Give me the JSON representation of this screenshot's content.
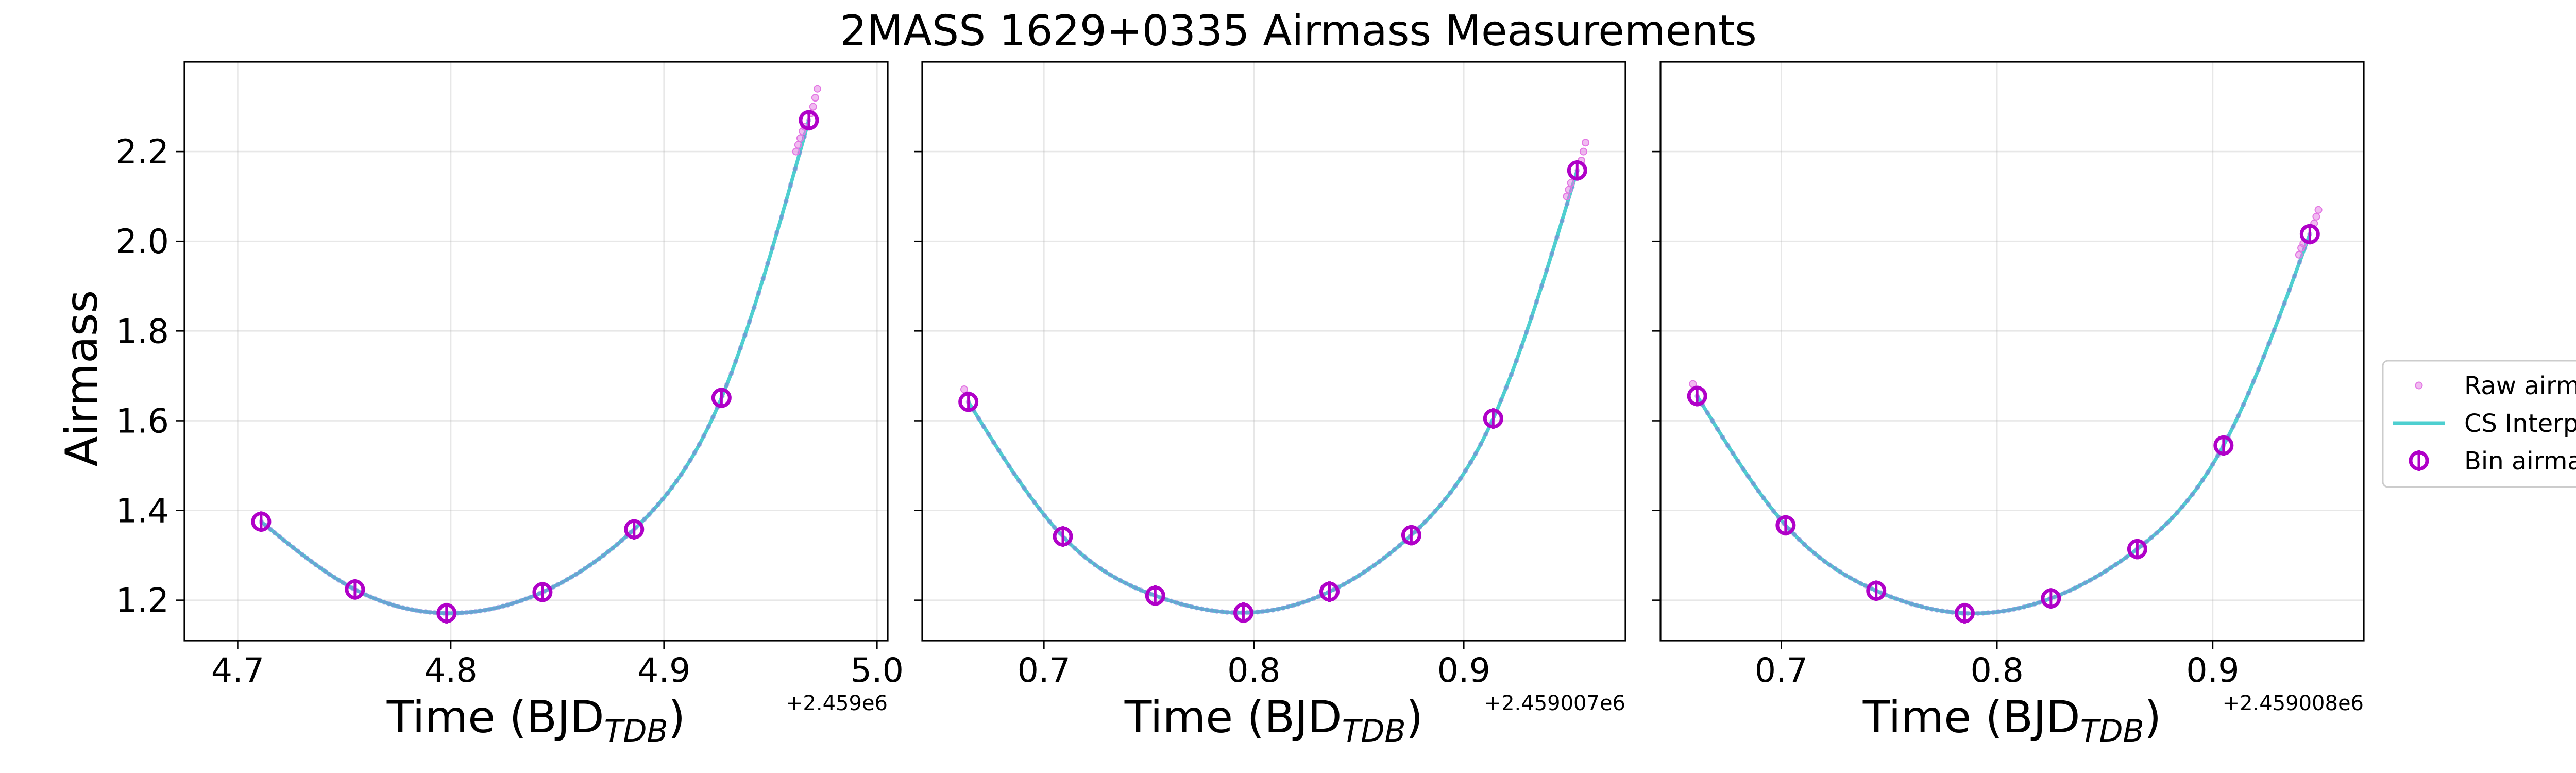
{
  "chart_data": {
    "type": "scatter",
    "title": "2MASS 1629+0335 Airmass Measurements",
    "ylabel": "Airmass",
    "xlabel_main": "Time (BJD",
    "xlabel_sub": "TDB",
    "xlabel_end": ")",
    "ylim": [
      1.11,
      2.4
    ],
    "yticks": [
      1.2,
      1.4,
      1.6,
      1.8,
      2.0,
      2.2
    ],
    "ytick_labels": [
      "1.2",
      "1.4",
      "1.6",
      "1.8",
      "2.0",
      "2.2"
    ],
    "grid": true,
    "legend_position": "right",
    "legend": [
      {
        "label": "Raw airmass",
        "kind": "raw"
      },
      {
        "label": "CS Interp.",
        "kind": "interp"
      },
      {
        "label": "Bin airmass",
        "kind": "bin"
      }
    ],
    "colors": {
      "raw": "#e377e3",
      "raw_dark": "#8a6fd8",
      "interp": "#4ecfd0",
      "bin": "#b000c8"
    },
    "panels": [
      {
        "offset_label": "+2.459e6",
        "xlim": [
          4.675,
          5.005
        ],
        "xticks": [
          4.7,
          4.8,
          4.9,
          5.0
        ],
        "xtick_labels": [
          "4.7",
          "4.8",
          "4.9",
          "5.0"
        ],
        "bins": [
          {
            "x": 4.711,
            "y": 1.375
          },
          {
            "x": 4.755,
            "y": 1.224
          },
          {
            "x": 4.798,
            "y": 1.171
          },
          {
            "x": 4.843,
            "y": 1.218
          },
          {
            "x": 4.886,
            "y": 1.358
          },
          {
            "x": 4.927,
            "y": 1.651
          },
          {
            "x": 4.968,
            "y": 2.27
          }
        ],
        "raw_end": [
          {
            "x": 4.962,
            "y": 2.2
          },
          {
            "x": 4.963,
            "y": 2.215
          },
          {
            "x": 4.964,
            "y": 2.23
          },
          {
            "x": 4.965,
            "y": 2.245
          },
          {
            "x": 4.966,
            "y": 2.255
          },
          {
            "x": 4.969,
            "y": 2.285
          },
          {
            "x": 4.97,
            "y": 2.3
          },
          {
            "x": 4.971,
            "y": 2.32
          },
          {
            "x": 4.972,
            "y": 2.34
          }
        ]
      },
      {
        "offset_label": "+2.459007e6",
        "xlim": [
          0.642,
          0.977
        ],
        "xticks": [
          0.7,
          0.8,
          0.9
        ],
        "xtick_labels": [
          "0.7",
          "0.8",
          "0.9"
        ],
        "bins": [
          {
            "x": 0.664,
            "y": 1.642
          },
          {
            "x": 0.709,
            "y": 1.342
          },
          {
            "x": 0.753,
            "y": 1.21
          },
          {
            "x": 0.795,
            "y": 1.172
          },
          {
            "x": 0.836,
            "y": 1.219
          },
          {
            "x": 0.875,
            "y": 1.345
          },
          {
            "x": 0.914,
            "y": 1.605
          },
          {
            "x": 0.954,
            "y": 2.158
          }
        ],
        "raw_end": [
          {
            "x": 0.662,
            "y": 1.67
          },
          {
            "x": 0.949,
            "y": 2.1
          },
          {
            "x": 0.95,
            "y": 2.115
          },
          {
            "x": 0.951,
            "y": 2.13
          },
          {
            "x": 0.956,
            "y": 2.18
          },
          {
            "x": 0.957,
            "y": 2.2
          },
          {
            "x": 0.958,
            "y": 2.22
          }
        ]
      },
      {
        "offset_label": "+2.459008e6",
        "xlim": [
          0.644,
          0.97
        ],
        "xticks": [
          0.7,
          0.8,
          0.9
        ],
        "xtick_labels": [
          "0.7",
          "0.8",
          "0.9"
        ],
        "bins": [
          {
            "x": 0.661,
            "y": 1.655
          },
          {
            "x": 0.702,
            "y": 1.367
          },
          {
            "x": 0.744,
            "y": 1.221
          },
          {
            "x": 0.785,
            "y": 1.171
          },
          {
            "x": 0.825,
            "y": 1.204
          },
          {
            "x": 0.865,
            "y": 1.314
          },
          {
            "x": 0.905,
            "y": 1.545
          },
          {
            "x": 0.945,
            "y": 2.016
          }
        ],
        "raw_end": [
          {
            "x": 0.659,
            "y": 1.682
          },
          {
            "x": 0.94,
            "y": 1.97
          },
          {
            "x": 0.941,
            "y": 1.985
          },
          {
            "x": 0.942,
            "y": 1.995
          },
          {
            "x": 0.947,
            "y": 2.04
          },
          {
            "x": 0.948,
            "y": 2.055
          },
          {
            "x": 0.949,
            "y": 2.07
          }
        ]
      }
    ]
  }
}
